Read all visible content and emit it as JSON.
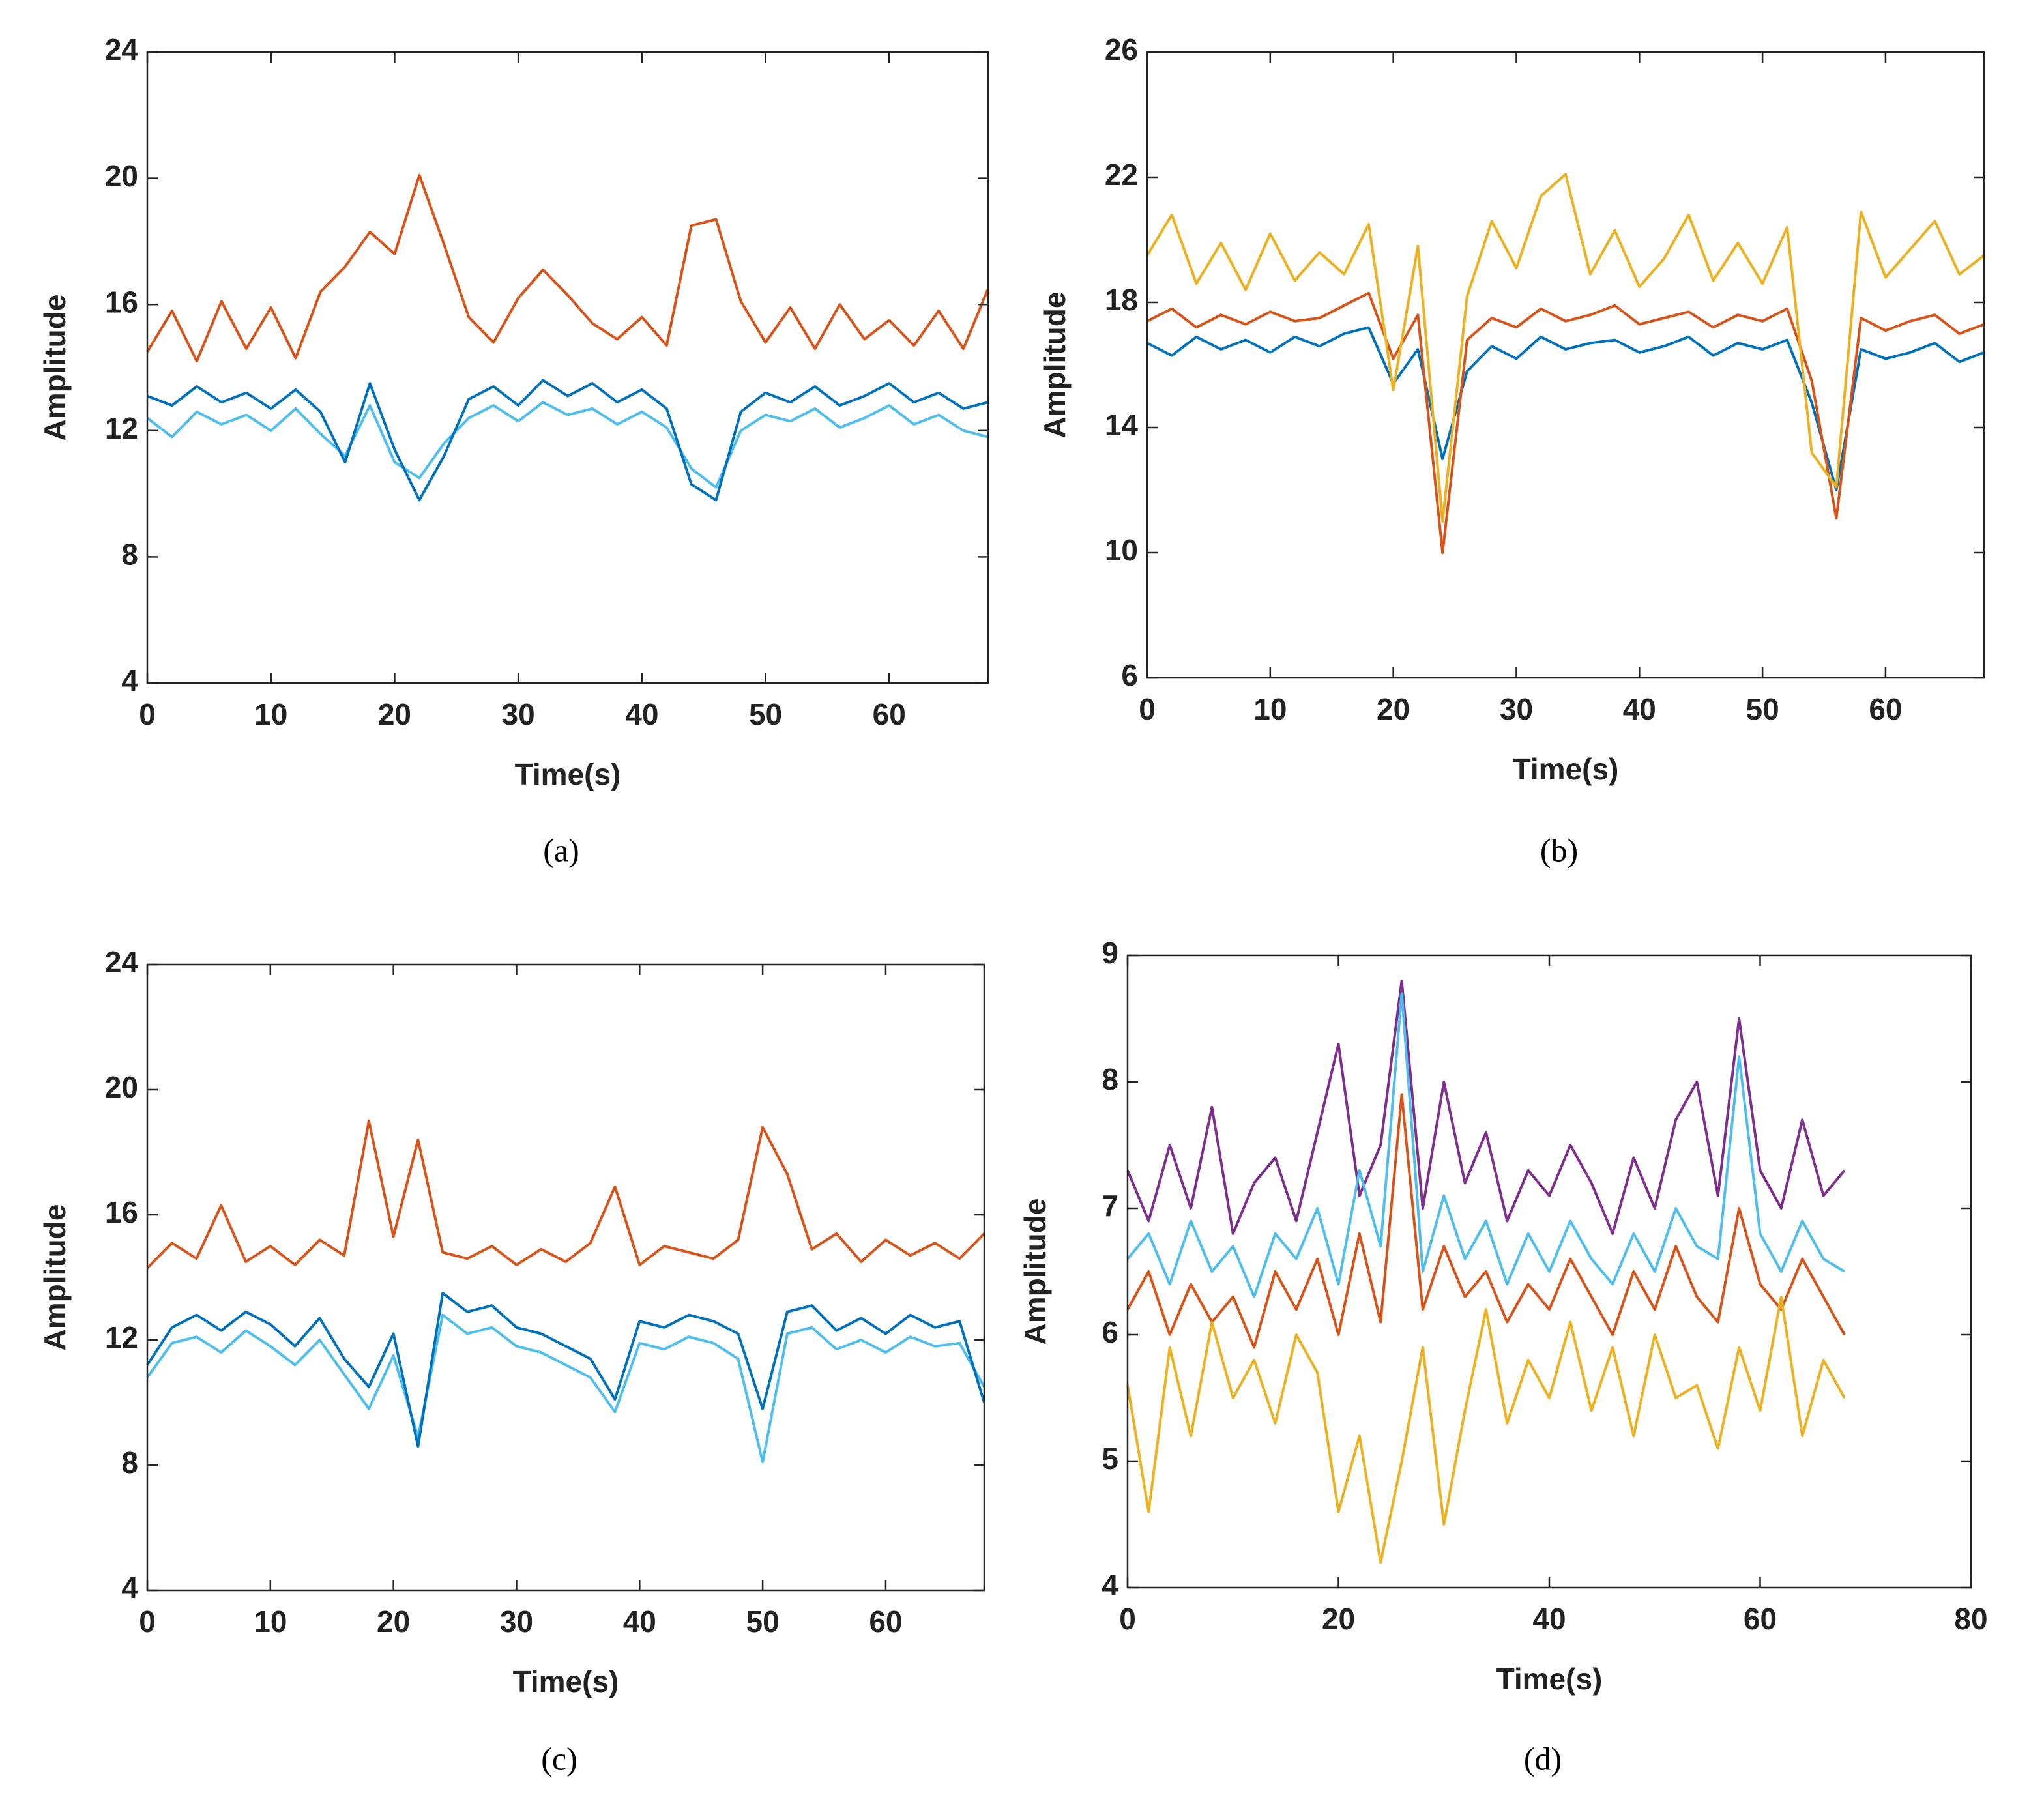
{
  "chart_data": [
    {
      "type": "line",
      "label": "(a)",
      "xlabel": "Time(s)",
      "ylabel": "Amplitude",
      "x": [
        0,
        2,
        4,
        6,
        8,
        10,
        12,
        14,
        16,
        18,
        20,
        22,
        24,
        26,
        28,
        30,
        32,
        34,
        36,
        38,
        40,
        42,
        44,
        46,
        48,
        50,
        52,
        54,
        56,
        58,
        60,
        62,
        64,
        66,
        68
      ],
      "xlim": [
        0,
        68
      ],
      "xticks": [
        0,
        10,
        20,
        30,
        40,
        50,
        60
      ],
      "ylim": [
        4,
        24
      ],
      "yticks": [
        4,
        8,
        12,
        16,
        20,
        24
      ],
      "series": [
        {
          "color": "#4DBEEE",
          "values": [
            12.4,
            11.8,
            12.6,
            12.2,
            12.5,
            12.0,
            12.7,
            11.9,
            11.2,
            12.8,
            11.0,
            10.5,
            11.6,
            12.4,
            12.8,
            12.3,
            12.9,
            12.5,
            12.7,
            12.2,
            12.6,
            12.1,
            10.8,
            10.2,
            12.0,
            12.5,
            12.3,
            12.7,
            12.1,
            12.4,
            12.8,
            12.2,
            12.5,
            12.0,
            11.8
          ]
        },
        {
          "color": "#0072BD",
          "values": [
            13.1,
            12.8,
            13.4,
            12.9,
            13.2,
            12.7,
            13.3,
            12.6,
            11.0,
            13.5,
            11.4,
            9.8,
            11.2,
            13.0,
            13.4,
            12.8,
            13.6,
            13.1,
            13.5,
            12.9,
            13.3,
            12.7,
            10.3,
            9.8,
            12.6,
            13.2,
            12.9,
            13.4,
            12.8,
            13.1,
            13.5,
            12.9,
            13.2,
            12.7,
            12.9
          ]
        },
        {
          "color": "#D95319",
          "values": [
            14.5,
            15.8,
            14.2,
            16.1,
            14.6,
            15.9,
            14.3,
            16.4,
            17.2,
            18.3,
            17.6,
            20.1,
            17.9,
            15.6,
            14.8,
            16.2,
            17.1,
            16.3,
            15.4,
            14.9,
            15.6,
            14.7,
            18.5,
            18.7,
            16.1,
            14.8,
            15.9,
            14.6,
            16.0,
            14.9,
            15.5,
            14.7,
            15.8,
            14.6,
            16.5
          ]
        }
      ]
    },
    {
      "type": "line",
      "label": "(b)",
      "xlabel": "Time(s)",
      "ylabel": "Amplitude",
      "x": [
        0,
        2,
        4,
        6,
        8,
        10,
        12,
        14,
        16,
        18,
        20,
        22,
        24,
        26,
        28,
        30,
        32,
        34,
        36,
        38,
        40,
        42,
        44,
        46,
        48,
        50,
        52,
        54,
        56,
        58,
        60,
        62,
        64,
        66,
        68
      ],
      "xlim": [
        0,
        68
      ],
      "xticks": [
        0,
        10,
        20,
        30,
        40,
        50,
        60
      ],
      "ylim": [
        6,
        26
      ],
      "yticks": [
        6,
        10,
        14,
        18,
        22,
        26
      ],
      "series": [
        {
          "color": "#0072BD",
          "values": [
            16.7,
            16.3,
            16.9,
            16.5,
            16.8,
            16.4,
            16.9,
            16.6,
            17.0,
            17.2,
            15.4,
            16.5,
            13.0,
            15.8,
            16.6,
            16.2,
            16.9,
            16.5,
            16.7,
            16.8,
            16.4,
            16.6,
            16.9,
            16.3,
            16.7,
            16.5,
            16.8,
            14.8,
            12.0,
            16.5,
            16.2,
            16.4,
            16.7,
            16.1,
            16.4
          ]
        },
        {
          "color": "#D95319",
          "values": [
            17.4,
            17.8,
            17.2,
            17.6,
            17.3,
            17.7,
            17.4,
            17.5,
            17.9,
            18.3,
            16.2,
            17.6,
            10.0,
            16.8,
            17.5,
            17.2,
            17.8,
            17.4,
            17.6,
            17.9,
            17.3,
            17.5,
            17.7,
            17.2,
            17.6,
            17.4,
            17.8,
            15.5,
            11.1,
            17.5,
            17.1,
            17.4,
            17.6,
            17.0,
            17.3
          ]
        },
        {
          "color": "#EDB120",
          "values": [
            19.5,
            20.8,
            18.6,
            19.9,
            18.4,
            20.2,
            18.7,
            19.6,
            18.9,
            20.5,
            15.2,
            19.8,
            11.0,
            18.2,
            20.6,
            19.1,
            21.4,
            22.1,
            18.9,
            20.3,
            18.5,
            19.4,
            20.8,
            18.7,
            19.9,
            18.6,
            20.4,
            13.2,
            12.1,
            20.9,
            18.8,
            19.7,
            20.6,
            18.9,
            19.5
          ]
        }
      ]
    },
    {
      "type": "line",
      "label": "(c)",
      "xlabel": "Time(s)",
      "ylabel": "Amplitude",
      "x": [
        0,
        2,
        4,
        6,
        8,
        10,
        12,
        14,
        16,
        18,
        20,
        22,
        24,
        26,
        28,
        30,
        32,
        34,
        36,
        38,
        40,
        42,
        44,
        46,
        48,
        50,
        52,
        54,
        56,
        58,
        60,
        62,
        64,
        66,
        68
      ],
      "xlim": [
        0,
        68
      ],
      "xticks": [
        0,
        10,
        20,
        30,
        40,
        50,
        60
      ],
      "ylim": [
        4,
        24
      ],
      "yticks": [
        4,
        8,
        12,
        16,
        20,
        24
      ],
      "series": [
        {
          "color": "#4DBEEE",
          "values": [
            10.8,
            11.9,
            12.1,
            11.6,
            12.3,
            11.8,
            11.2,
            12.0,
            10.9,
            9.8,
            11.5,
            8.9,
            12.8,
            12.2,
            12.4,
            11.8,
            11.6,
            11.2,
            10.8,
            9.7,
            11.9,
            11.7,
            12.1,
            11.9,
            11.4,
            8.1,
            12.2,
            12.4,
            11.7,
            12.0,
            11.6,
            12.1,
            11.8,
            11.9,
            10.5
          ]
        },
        {
          "color": "#0072BD",
          "values": [
            11.2,
            12.4,
            12.8,
            12.3,
            12.9,
            12.5,
            11.8,
            12.7,
            11.4,
            10.5,
            12.2,
            8.6,
            13.5,
            12.9,
            13.1,
            12.4,
            12.2,
            11.8,
            11.4,
            10.1,
            12.6,
            12.4,
            12.8,
            12.6,
            12.2,
            9.8,
            12.9,
            13.1,
            12.3,
            12.7,
            12.2,
            12.8,
            12.4,
            12.6,
            10.0
          ]
        },
        {
          "color": "#D95319",
          "values": [
            14.3,
            15.1,
            14.6,
            16.3,
            14.5,
            15.0,
            14.4,
            15.2,
            14.7,
            19.0,
            15.3,
            18.4,
            14.8,
            14.6,
            15.0,
            14.4,
            14.9,
            14.5,
            15.1,
            16.9,
            14.4,
            15.0,
            14.8,
            14.6,
            15.2,
            18.8,
            17.3,
            14.9,
            15.4,
            14.5,
            15.2,
            14.7,
            15.1,
            14.6,
            15.4
          ]
        }
      ]
    },
    {
      "type": "line",
      "label": "(d)",
      "xlabel": "Time(s)",
      "ylabel": "Amplitude",
      "x": [
        0,
        2,
        4,
        6,
        8,
        10,
        12,
        14,
        16,
        18,
        20,
        22,
        24,
        26,
        28,
        30,
        32,
        34,
        36,
        38,
        40,
        42,
        44,
        46,
        48,
        50,
        52,
        54,
        56,
        58,
        60,
        62,
        64,
        66,
        68
      ],
      "xlim": [
        0,
        80
      ],
      "xticks": [
        0,
        20,
        40,
        60,
        80
      ],
      "ylim": [
        4,
        9
      ],
      "yticks": [
        4,
        5,
        6,
        7,
        8,
        9
      ],
      "series": [
        {
          "color": "#7E2F8E",
          "values": [
            7.3,
            6.9,
            7.5,
            7.0,
            7.8,
            6.8,
            7.2,
            7.4,
            6.9,
            7.6,
            8.3,
            7.1,
            7.5,
            8.8,
            7.0,
            8.0,
            7.2,
            7.6,
            6.9,
            7.3,
            7.1,
            7.5,
            7.2,
            6.8,
            7.4,
            7.0,
            7.7,
            8.0,
            7.1,
            8.5,
            7.3,
            7.0,
            7.7,
            7.1,
            7.3
          ]
        },
        {
          "color": "#4DBEEE",
          "values": [
            6.6,
            6.8,
            6.4,
            6.9,
            6.5,
            6.7,
            6.3,
            6.8,
            6.6,
            7.0,
            6.4,
            7.3,
            6.7,
            8.7,
            6.5,
            7.1,
            6.6,
            6.9,
            6.4,
            6.8,
            6.5,
            6.9,
            6.6,
            6.4,
            6.8,
            6.5,
            7.0,
            6.7,
            6.6,
            8.2,
            6.8,
            6.5,
            6.9,
            6.6,
            6.5
          ]
        },
        {
          "color": "#D95319",
          "values": [
            6.2,
            6.5,
            6.0,
            6.4,
            6.1,
            6.3,
            5.9,
            6.5,
            6.2,
            6.6,
            6.0,
            6.8,
            6.1,
            7.9,
            6.2,
            6.7,
            6.3,
            6.5,
            6.1,
            6.4,
            6.2,
            6.6,
            6.3,
            6.0,
            6.5,
            6.2,
            6.7,
            6.3,
            6.1,
            7.0,
            6.4,
            6.2,
            6.6,
            6.3,
            6.0
          ]
        },
        {
          "color": "#EDB120",
          "values": [
            5.6,
            4.6,
            5.9,
            5.2,
            6.1,
            5.5,
            5.8,
            5.3,
            6.0,
            5.7,
            4.6,
            5.2,
            4.2,
            5.0,
            5.9,
            4.5,
            5.4,
            6.2,
            5.3,
            5.8,
            5.5,
            6.1,
            5.4,
            5.9,
            5.2,
            6.0,
            5.5,
            5.6,
            5.1,
            5.9,
            5.4,
            6.3,
            5.2,
            5.8,
            5.5
          ]
        }
      ]
    }
  ]
}
